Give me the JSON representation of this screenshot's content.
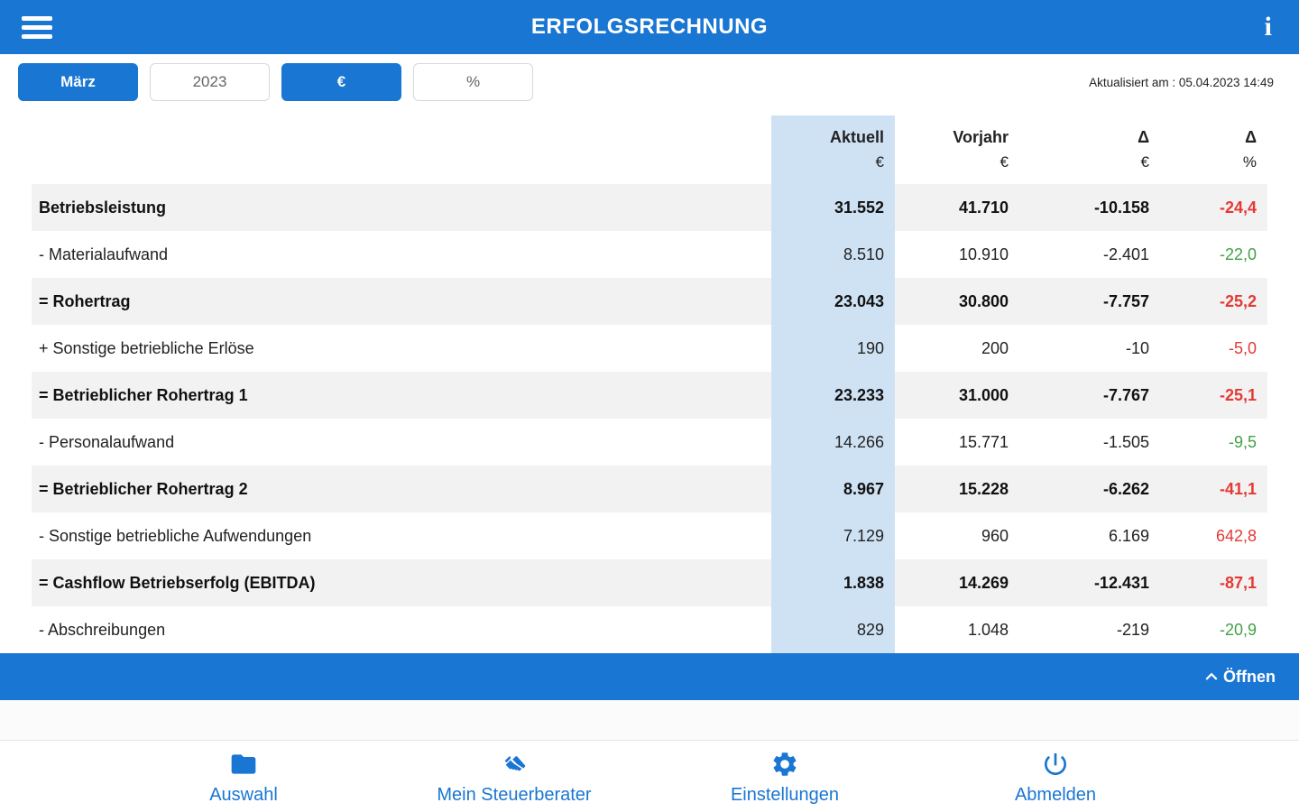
{
  "colors": {
    "primary": "#1976d2",
    "column_highlight": "#cfe2f4",
    "negative": "#e53935",
    "positive": "#43a047"
  },
  "header": {
    "title": "ERFOLGSRECHNUNG",
    "info_glyph": "i"
  },
  "toolbar": {
    "buttons": [
      {
        "label": "März",
        "active": true
      },
      {
        "label": "2023",
        "active": false
      },
      {
        "label": "€",
        "active": true
      },
      {
        "label": "%",
        "active": false
      }
    ],
    "updated": "Aktualisiert am : 05.04.2023 14:49"
  },
  "table": {
    "columns": [
      {
        "label": "Aktuell",
        "unit": "€"
      },
      {
        "label": "Vorjahr",
        "unit": "€"
      },
      {
        "label": "Δ",
        "unit": "€"
      },
      {
        "label": "Δ",
        "unit": "%"
      }
    ],
    "rows": [
      {
        "label": "Betriebsleistung",
        "bold": true,
        "aktuell": "31.552",
        "vorjahr": "41.710",
        "delta_eur": "-10.158",
        "delta_pct": "-24,4",
        "trend": "negative"
      },
      {
        "label": "- Materialaufwand",
        "bold": false,
        "aktuell": "8.510",
        "vorjahr": "10.910",
        "delta_eur": "-2.401",
        "delta_pct": "-22,0",
        "trend": "positive"
      },
      {
        "label": "= Rohertrag",
        "bold": true,
        "aktuell": "23.043",
        "vorjahr": "30.800",
        "delta_eur": "-7.757",
        "delta_pct": "-25,2",
        "trend": "negative"
      },
      {
        "label": "+ Sonstige betriebliche Erlöse",
        "bold": false,
        "aktuell": "190",
        "vorjahr": "200",
        "delta_eur": "-10",
        "delta_pct": "-5,0",
        "trend": "negative"
      },
      {
        "label": "= Betrieblicher Rohertrag 1",
        "bold": true,
        "aktuell": "23.233",
        "vorjahr": "31.000",
        "delta_eur": "-7.767",
        "delta_pct": "-25,1",
        "trend": "negative"
      },
      {
        "label": "- Personalaufwand",
        "bold": false,
        "aktuell": "14.266",
        "vorjahr": "15.771",
        "delta_eur": "-1.505",
        "delta_pct": "-9,5",
        "trend": "positive"
      },
      {
        "label": "= Betrieblicher Rohertrag 2",
        "bold": true,
        "aktuell": "8.967",
        "vorjahr": "15.228",
        "delta_eur": "-6.262",
        "delta_pct": "-41,1",
        "trend": "negative"
      },
      {
        "label": "- Sonstige betriebliche Aufwendungen",
        "bold": false,
        "aktuell": "7.129",
        "vorjahr": "960",
        "delta_eur": "6.169",
        "delta_pct": "642,8",
        "trend": "negative"
      },
      {
        "label": "= Cashflow Betriebserfolg (EBITDA)",
        "bold": true,
        "aktuell": "1.838",
        "vorjahr": "14.269",
        "delta_eur": "-12.431",
        "delta_pct": "-87,1",
        "trend": "negative"
      },
      {
        "label": "- Abschreibungen",
        "bold": false,
        "aktuell": "829",
        "vorjahr": "1.048",
        "delta_eur": "-219",
        "delta_pct": "-20,9",
        "trend": "positive"
      }
    ]
  },
  "expander": {
    "label": "Öffnen",
    "icon": "chevron-up-icon"
  },
  "bottom_nav": {
    "items": [
      {
        "label": "Auswahl",
        "icon": "folder-icon"
      },
      {
        "label": "Mein Steuerberater",
        "icon": "handshake-icon"
      },
      {
        "label": "Einstellungen",
        "icon": "gear-icon"
      },
      {
        "label": "Abmelden",
        "icon": "power-icon"
      }
    ]
  }
}
